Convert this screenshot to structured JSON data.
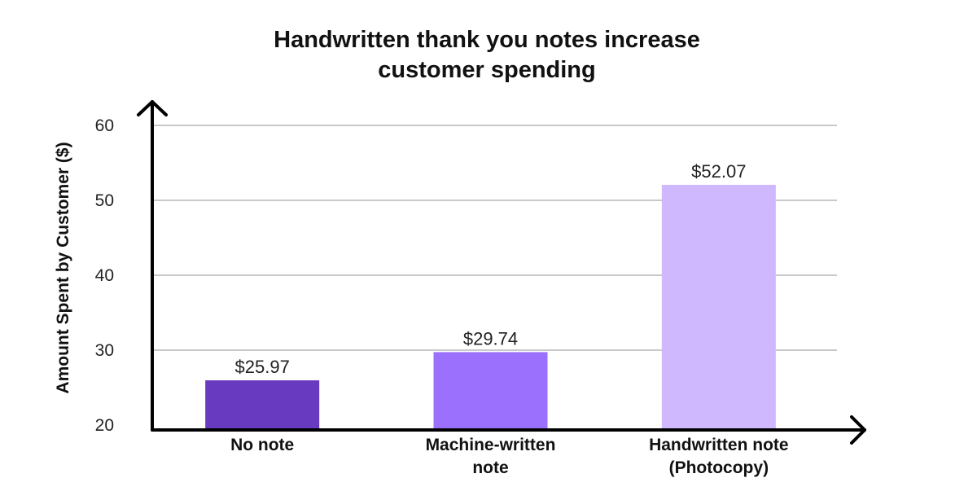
{
  "chart_data": {
    "type": "bar",
    "title_lines": [
      "Handwritten thank you notes increase",
      "customer spending"
    ],
    "xlabel": "",
    "ylabel": "Amount Spent by Customer ($)",
    "ylim": [
      20,
      60
    ],
    "yticks": [
      20,
      30,
      40,
      50,
      60
    ],
    "grid": true,
    "categories": [
      [
        "No note"
      ],
      [
        "Machine-written",
        "note"
      ],
      [
        "Handwritten note",
        "(Photocopy)"
      ]
    ],
    "values": [
      25.97,
      29.74,
      52.07
    ],
    "data_labels": [
      "$25.97",
      "$29.74",
      "$52.07"
    ],
    "colors": [
      "#673ac0",
      "#9a70fd",
      "#cfb8fd"
    ],
    "axis_color": "#000000",
    "grid_color": "#c9c9c9"
  }
}
